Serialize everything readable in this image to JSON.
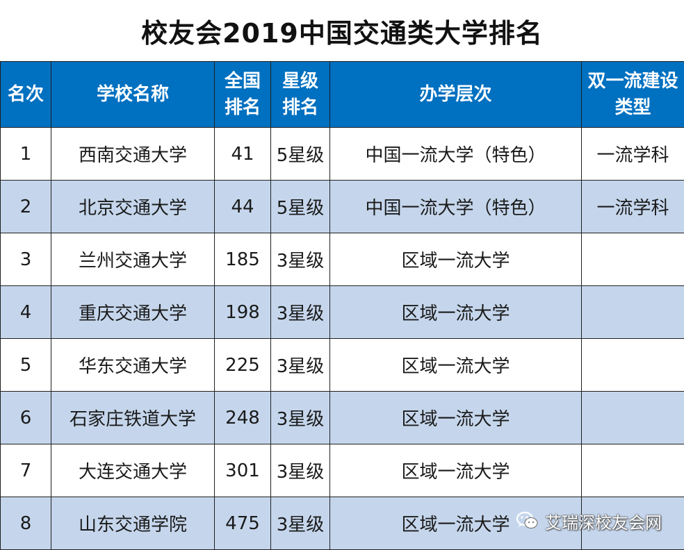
{
  "title": "校友会2019中国交通类大学排名",
  "table": {
    "headers": [
      {
        "line1": "名次",
        "line2": ""
      },
      {
        "line1": "学校名称",
        "line2": ""
      },
      {
        "line1": "全国",
        "line2": "排名"
      },
      {
        "line1": "星级",
        "line2": "排名"
      },
      {
        "line1": "办学层次",
        "line2": ""
      },
      {
        "line1": "双一流建设",
        "line2": "类型"
      }
    ],
    "rows": [
      {
        "rank": "1",
        "school": "西南交通大学",
        "national_rank": "41",
        "star": "5星级",
        "level": "中国一流大学（特色）",
        "double_first_class": "一流学科"
      },
      {
        "rank": "2",
        "school": "北京交通大学",
        "national_rank": "44",
        "star": "5星级",
        "level": "中国一流大学（特色）",
        "double_first_class": "一流学科"
      },
      {
        "rank": "3",
        "school": "兰州交通大学",
        "national_rank": "185",
        "star": "3星级",
        "level": "区域一流大学",
        "double_first_class": ""
      },
      {
        "rank": "4",
        "school": "重庆交通大学",
        "national_rank": "198",
        "star": "3星级",
        "level": "区域一流大学",
        "double_first_class": ""
      },
      {
        "rank": "5",
        "school": "华东交通大学",
        "national_rank": "225",
        "star": "3星级",
        "level": "区域一流大学",
        "double_first_class": ""
      },
      {
        "rank": "6",
        "school": "石家庄铁道大学",
        "national_rank": "248",
        "star": "3星级",
        "level": "区域一流大学",
        "double_first_class": ""
      },
      {
        "rank": "7",
        "school": "大连交通大学",
        "national_rank": "301",
        "star": "3星级",
        "level": "区域一流大学",
        "double_first_class": ""
      },
      {
        "rank": "8",
        "school": "山东交通学院",
        "national_rank": "475",
        "star": "3星级",
        "level": "区域一流大学",
        "double_first_class": ""
      }
    ]
  },
  "watermark": {
    "text": "艾瑞深校友会网",
    "icon": "wechat-icon"
  },
  "colors": {
    "header_bg": "#0070c0",
    "header_text": "#ffffff",
    "row_alt_bg": "#c5d6ec",
    "row_bg": "#ffffff"
  }
}
